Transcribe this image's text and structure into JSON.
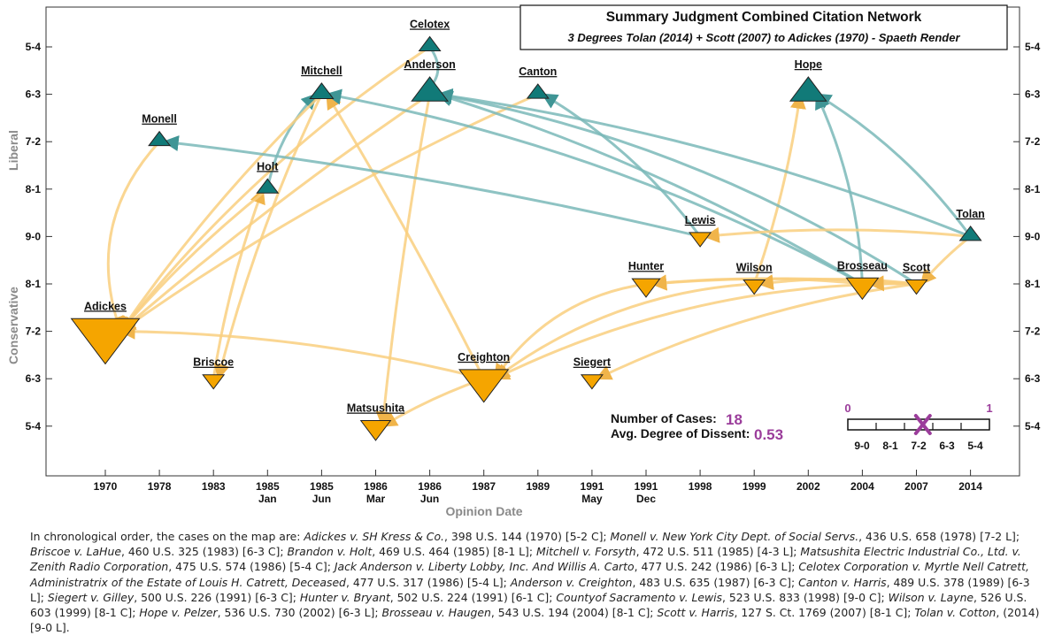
{
  "title": "Summary Judgment Combined Citation Network",
  "subtitle": "3 Degrees Tolan (2014) + Scott (2007) to Adickes (1970)  - Spaeth Render",
  "y_axis": {
    "title_top": "Liberal",
    "title_bottom": "Conservative",
    "ticks": [
      "5-4",
      "6-3",
      "7-2",
      "8-1",
      "9-0",
      "8-1",
      "7-2",
      "6-3",
      "5-4"
    ]
  },
  "x_axis": {
    "title": "Opinion Date",
    "ticks": [
      {
        "year": "1970",
        "sub": ""
      },
      {
        "year": "1978",
        "sub": ""
      },
      {
        "year": "1983",
        "sub": ""
      },
      {
        "year": "1985",
        "sub": "Jan"
      },
      {
        "year": "1985",
        "sub": "Jun"
      },
      {
        "year": "1986",
        "sub": "Mar"
      },
      {
        "year": "1986",
        "sub": "Jun"
      },
      {
        "year": "1987",
        "sub": ""
      },
      {
        "year": "1989",
        "sub": ""
      },
      {
        "year": "1991",
        "sub": "May"
      },
      {
        "year": "1991",
        "sub": "Dec"
      },
      {
        "year": "1998",
        "sub": ""
      },
      {
        "year": "1999",
        "sub": ""
      },
      {
        "year": "2002",
        "sub": ""
      },
      {
        "year": "2004",
        "sub": ""
      },
      {
        "year": "2007",
        "sub": ""
      },
      {
        "year": "2014",
        "sub": ""
      }
    ]
  },
  "colors": {
    "liberal": "#117a78",
    "conservative": "#f5a500",
    "liberal_edge": "#7ab9b9",
    "conservative_edge": "#f9cf7f",
    "stat": "#9b3d9b"
  },
  "nodes": [
    {
      "id": "adickes",
      "label": "Adickes",
      "col": 0,
      "level": -4,
      "dir": "C",
      "size": 3.2
    },
    {
      "id": "monell",
      "label": "Monell",
      "col": 1,
      "level": 2,
      "dir": "L",
      "size": 1.0
    },
    {
      "id": "briscoe",
      "label": "Briscoe",
      "col": 2,
      "level": -6,
      "dir": "C",
      "size": 1.0
    },
    {
      "id": "holt",
      "label": "Holt",
      "col": 3,
      "level": 4,
      "dir": "L",
      "size": 1.0
    },
    {
      "id": "mitchell",
      "label": "Mitchell",
      "col": 4,
      "level": -2,
      "dir": "L",
      "size": 1.1
    },
    {
      "id": "matsushita",
      "label": "Matsushita",
      "col": 5,
      "level": -8,
      "dir": "C",
      "size": 1.4
    },
    {
      "id": "anderson",
      "label": "Anderson",
      "col": 6,
      "level": -2,
      "dir": "L",
      "size": 1.7
    },
    {
      "id": "celotex",
      "label": "Celotex",
      "col": 6,
      "level": -1,
      "dir": "L",
      "size": 1.0
    },
    {
      "id": "creighton",
      "label": "Creighton",
      "col": 7,
      "level": -6,
      "dir": "C",
      "size": 2.3
    },
    {
      "id": "canton",
      "label": "Canton",
      "col": 8,
      "level": -2,
      "dir": "L",
      "size": 1.0
    },
    {
      "id": "siegert",
      "label": "Siegert",
      "col": 9,
      "level": -6,
      "dir": "C",
      "size": 1.0
    },
    {
      "id": "hunter",
      "label": "Hunter",
      "col": 10,
      "level": -3,
      "dir": "C",
      "size": 1.3
    },
    {
      "id": "lewis",
      "label": "Lewis",
      "col": 11,
      "level": 0,
      "dir": "C",
      "size": 1.0
    },
    {
      "id": "wilson",
      "label": "Wilson",
      "col": 12,
      "level": -3,
      "dir": "C",
      "size": 1.0
    },
    {
      "id": "hope",
      "label": "Hope",
      "col": 13,
      "level": -2,
      "dir": "L",
      "size": 1.7
    },
    {
      "id": "brosseau",
      "label": "Brosseau",
      "col": 14,
      "level": -3,
      "dir": "C",
      "size": 1.5
    },
    {
      "id": "scott",
      "label": "Scott",
      "col": 15,
      "level": -3,
      "dir": "C",
      "size": 1.0
    },
    {
      "id": "tolan",
      "label": "Tolan",
      "col": 16,
      "level": 0,
      "dir": "L",
      "size": 1.0
    }
  ],
  "edges": [
    {
      "from": "monell",
      "to": "adickes",
      "c": "C",
      "bend": 0.3
    },
    {
      "from": "briscoe",
      "to": "holt",
      "c": "C",
      "bend": -0.05
    },
    {
      "from": "holt",
      "to": "adickes",
      "c": "C",
      "bend": 0.05
    },
    {
      "from": "holt",
      "to": "mitchell",
      "c": "L",
      "bend": -0.15
    },
    {
      "from": "mitchell",
      "to": "adickes",
      "c": "C",
      "bend": 0.05
    },
    {
      "from": "mitchell",
      "to": "briscoe",
      "c": "C",
      "bend": 0.05
    },
    {
      "from": "anderson",
      "to": "adickes",
      "c": "C",
      "bend": 0.03
    },
    {
      "from": "anderson",
      "to": "matsushita",
      "c": "C",
      "bend": 0.02
    },
    {
      "from": "celotex",
      "to": "adickes",
      "c": "C",
      "bend": 0.08
    },
    {
      "from": "celotex",
      "to": "anderson",
      "c": "L",
      "bend": -0.5
    },
    {
      "from": "canton",
      "to": "adickes",
      "c": "C",
      "bend": 0.05
    },
    {
      "from": "creighton",
      "to": "adickes",
      "c": "C",
      "bend": 0.06
    },
    {
      "from": "creighton",
      "to": "matsushita",
      "c": "C",
      "bend": 0.05
    },
    {
      "from": "creighton",
      "to": "mitchell",
      "c": "C",
      "bend": 0.02
    },
    {
      "from": "hunter",
      "to": "creighton",
      "c": "C",
      "bend": 0.22
    },
    {
      "from": "lewis",
      "to": "monell",
      "c": "L",
      "bend": 0.03
    },
    {
      "from": "lewis",
      "to": "canton",
      "c": "L",
      "bend": 0.1
    },
    {
      "from": "wilson",
      "to": "creighton",
      "c": "C",
      "bend": 0.15
    },
    {
      "from": "wilson",
      "to": "hope",
      "c": "C",
      "bend": 0.05
    },
    {
      "from": "brosseau",
      "to": "anderson",
      "c": "L",
      "bend": 0.06
    },
    {
      "from": "brosseau",
      "to": "mitchell",
      "c": "L",
      "bend": 0.08
    },
    {
      "from": "brosseau",
      "to": "hope",
      "c": "L",
      "bend": 0.1
    },
    {
      "from": "brosseau",
      "to": "hunter",
      "c": "C",
      "bend": 0.05
    },
    {
      "from": "scott",
      "to": "hunter",
      "c": "C",
      "bend": 0.04
    },
    {
      "from": "scott",
      "to": "creighton",
      "c": "C",
      "bend": 0.12
    },
    {
      "from": "scott",
      "to": "siegert",
      "c": "C",
      "bend": 0.08
    },
    {
      "from": "scott",
      "to": "wilson",
      "c": "C",
      "bend": 0.06
    },
    {
      "from": "scott",
      "to": "anderson",
      "c": "L",
      "bend": 0.1
    },
    {
      "from": "scott",
      "to": "brosseau",
      "c": "C",
      "bend": 0.02
    },
    {
      "from": "tolan",
      "to": "lewis",
      "c": "C",
      "bend": 0.05
    },
    {
      "from": "tolan",
      "to": "hope",
      "c": "L",
      "bend": 0.1
    },
    {
      "from": "tolan",
      "to": "anderson",
      "c": "L",
      "bend": 0.06
    },
    {
      "from": "tolan",
      "to": "scott",
      "c": "C",
      "bend": 0.05
    }
  ],
  "stats": {
    "cases_label": "Number of Cases:",
    "cases_value": "18",
    "dissent_label": "Avg. Degree of Dissent:",
    "dissent_value": "0.53"
  },
  "scale": {
    "min_label": "0",
    "max_label": "1",
    "ticks": [
      "9-0",
      "8-1",
      "7-2",
      "6-3",
      "5-4"
    ],
    "marker_value": 0.53
  },
  "caption": [
    {
      "t": "In chronological order, the cases on the map are:  "
    },
    {
      "i": "Adickes v. SH Kress & Co."
    },
    {
      "t": ", 398 U.S. 144 (1970) [5-2 C];  "
    },
    {
      "i": "Monell v. New York City Dept. of Social Servs."
    },
    {
      "t": ", 436 U.S. 658 (1978) [7-2 L];  "
    },
    {
      "i": "Briscoe v. LaHue"
    },
    {
      "t": ", 460 U.S. 325 (1983) [6-3 C];  "
    },
    {
      "i": "Brandon v. Holt"
    },
    {
      "t": ", 469 U.S. 464 (1985) [8-1 L];  "
    },
    {
      "i": "Mitchell v. Forsyth"
    },
    {
      "t": ", 472 U.S. 511 (1985) [4-3 L];  "
    },
    {
      "i": "Matsushita Electric Industrial Co., Ltd. v. Zenith Radio Corporation"
    },
    {
      "t": ", 475 U.S. 574 (1986) [5-4 C];  "
    },
    {
      "i": "Jack Anderson v. Liberty Lobby, Inc. And Willis A. Carto"
    },
    {
      "t": ", 477 U.S. 242 (1986) [6-3 L];  "
    },
    {
      "i": "Celotex Corporation v. Myrtle Nell Catrett, Administratrix of the Estate of Louis H. Catrett, Deceased"
    },
    {
      "t": ", 477 U.S. 317 (1986) [5-4 L];  "
    },
    {
      "i": "Anderson v. Creighton"
    },
    {
      "t": ", 483 U.S. 635 (1987) [6-3 C];  "
    },
    {
      "i": "Canton v. Harris"
    },
    {
      "t": ", 489 U.S. 378 (1989) [6-3 L];  "
    },
    {
      "i": "Siegert v. Gilley"
    },
    {
      "t": ", 500 U.S. 226 (1991) [6-3 C];  "
    },
    {
      "i": "Hunter v. Bryant"
    },
    {
      "t": ", 502 U.S. 224 (1991) [6-1 C];  "
    },
    {
      "i": "Countyof Sacramento v. Lewis"
    },
    {
      "t": ", 523 U.S. 833 (1998) [9-0 C];  "
    },
    {
      "i": "Wilson v. Layne"
    },
    {
      "t": ", 526 U.S. 603 (1999) [8-1 C];  "
    },
    {
      "i": "Hope v. Pelzer"
    },
    {
      "t": ", 536 U.S. 730 (2002) [6-3 L];  "
    },
    {
      "i": "Brosseau v. Haugen"
    },
    {
      "t": ", 543 U.S. 194 (2004) [8-1 C];  "
    },
    {
      "i": "Scott v. Harris"
    },
    {
      "t": ", 127 S. Ct. 1769 (2007) [8-1 C];  "
    },
    {
      "i": "Tolan v. Cotton"
    },
    {
      "t": ", (2014) [9-0 L]."
    }
  ]
}
